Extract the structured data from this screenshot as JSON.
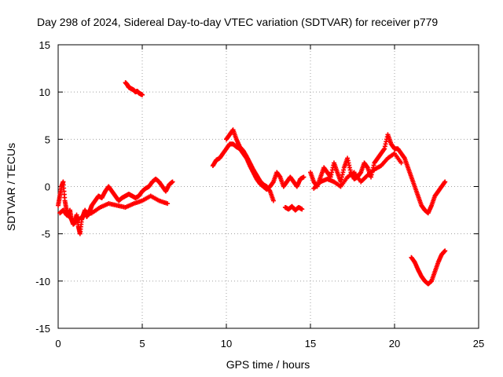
{
  "chart_data": {
    "type": "scatter",
    "title": "Day 298 of 2024, Sidereal Day-to-day VTEC variation (SDTVAR) for receiver p779",
    "xlabel": "GPS time / hours",
    "ylabel": "SDTVAR / TECUs",
    "xlim": [
      0,
      25
    ],
    "ylim": [
      -15,
      15
    ],
    "xticks": [
      0,
      5,
      10,
      15,
      20,
      25
    ],
    "yticks": [
      -15,
      -10,
      -5,
      0,
      5,
      10,
      15
    ],
    "grid": true,
    "marker": "plus",
    "color": "#ff0000",
    "series": [
      {
        "name": "SDTVAR",
        "segments": [
          {
            "x": [
              0.0,
              0.1,
              0.2,
              0.3,
              0.4,
              0.5,
              0.6,
              0.7,
              0.8,
              0.9,
              1.0,
              1.1,
              1.2,
              1.3,
              1.4,
              1.5,
              1.6,
              1.7,
              1.8,
              1.9,
              2.0,
              2.2,
              2.4,
              2.6,
              2.8,
              3.0,
              3.2,
              3.4,
              3.6,
              3.8,
              4.0,
              4.2,
              4.4,
              4.6,
              4.8,
              5.0,
              5.2,
              5.4,
              5.6,
              5.8,
              6.0,
              6.2,
              6.4,
              6.6,
              6.8
            ],
            "y": [
              -2.0,
              -1.0,
              0.0,
              0.5,
              -1.5,
              -2.5,
              -3.0,
              -2.5,
              -3.5,
              -4.0,
              -3.8,
              -3.0,
              -4.2,
              -5.0,
              -3.5,
              -3.0,
              -2.5,
              -3.2,
              -2.8,
              -2.5,
              -2.0,
              -1.5,
              -1.0,
              -1.2,
              -0.5,
              0.0,
              -0.5,
              -1.0,
              -1.5,
              -1.2,
              -1.0,
              -0.8,
              -1.0,
              -1.2,
              -1.0,
              -0.5,
              -0.2,
              0.0,
              0.5,
              0.8,
              0.5,
              0.0,
              -0.5,
              0.2,
              0.5
            ]
          },
          {
            "x": [
              0.1,
              0.3,
              0.5,
              0.7,
              0.9,
              1.2,
              1.6,
              2.0,
              2.5,
              3.0,
              3.5,
              4.0,
              4.5,
              5.0,
              5.5,
              6.0,
              6.5
            ],
            "y": [
              -2.8,
              -2.5,
              -3.0,
              -3.2,
              -3.8,
              -3.5,
              -3.0,
              -2.8,
              -2.2,
              -1.8,
              -2.0,
              -2.2,
              -1.8,
              -1.5,
              -1.0,
              -1.5,
              -1.8
            ]
          },
          {
            "x": [
              4.0,
              4.1,
              4.2,
              4.3,
              4.4,
              4.5,
              4.6,
              4.7,
              4.8,
              4.9,
              5.0
            ],
            "y": [
              11.0,
              10.8,
              10.5,
              10.4,
              10.3,
              10.2,
              10.0,
              10.1,
              9.9,
              9.8,
              9.7
            ]
          },
          {
            "x": [
              9.2,
              9.4,
              9.6,
              9.8,
              10.0,
              10.2,
              10.4,
              10.6,
              10.8,
              11.0,
              11.2,
              11.4,
              11.6,
              11.8,
              12.0,
              12.2,
              12.4,
              12.6,
              12.8,
              13.0,
              13.2,
              13.4,
              13.6,
              13.8,
              14.0,
              14.2,
              14.4,
              14.6
            ],
            "y": [
              2.2,
              2.8,
              3.0,
              3.5,
              4.0,
              4.5,
              4.5,
              4.2,
              4.0,
              3.5,
              3.0,
              2.2,
              1.5,
              0.8,
              0.3,
              0.0,
              -0.3,
              0.0,
              0.5,
              1.5,
              1.0,
              0.0,
              0.5,
              1.0,
              0.5,
              0.0,
              0.8,
              1.0
            ]
          },
          {
            "x": [
              10.0,
              10.2,
              10.4,
              10.6,
              10.8,
              11.0,
              11.2,
              11.4,
              11.6,
              11.8,
              12.0,
              12.2,
              12.4,
              12.6,
              12.8
            ],
            "y": [
              5.0,
              5.5,
              6.0,
              5.0,
              4.2,
              3.8,
              3.2,
              2.5,
              1.8,
              1.2,
              0.6,
              0.2,
              0.0,
              -0.5,
              -1.5
            ]
          },
          {
            "x": [
              13.5,
              13.7,
              13.9,
              14.1,
              14.3,
              14.5
            ],
            "y": [
              -2.2,
              -2.4,
              -2.1,
              -2.5,
              -2.2,
              -2.4
            ]
          },
          {
            "x": [
              15.0,
              15.2,
              15.4,
              15.6,
              15.8,
              16.0,
              16.2,
              16.4,
              16.6,
              16.8,
              17.0,
              17.2,
              17.4,
              17.6,
              17.8,
              18.0,
              18.2,
              18.4,
              18.6,
              18.8,
              19.0,
              19.2,
              19.4,
              19.6,
              19.8,
              20.0,
              20.2,
              20.4,
              20.6,
              20.8,
              21.0,
              21.2,
              21.4,
              21.6,
              21.8,
              22.0,
              22.2,
              22.4,
              22.6,
              22.8,
              23.0
            ],
            "y": [
              1.5,
              0.5,
              0.0,
              1.0,
              2.0,
              1.5,
              1.0,
              2.5,
              1.5,
              0.5,
              2.0,
              3.0,
              1.5,
              0.8,
              1.0,
              1.5,
              2.5,
              2.0,
              1.0,
              2.5,
              3.0,
              3.5,
              4.0,
              5.5,
              4.5,
              4.0,
              4.0,
              3.5,
              3.0,
              2.0,
              1.0,
              0.0,
              -1.0,
              -2.0,
              -2.5,
              -2.8,
              -2.0,
              -1.0,
              -0.5,
              0.0,
              0.5
            ]
          },
          {
            "x": [
              15.2,
              15.6,
              16.0,
              16.4,
              16.8,
              17.2,
              17.6,
              18.0,
              18.4,
              18.8,
              19.2,
              19.6,
              20.0,
              20.4
            ],
            "y": [
              -0.2,
              0.5,
              0.8,
              0.5,
              0.0,
              1.0,
              1.5,
              0.5,
              1.2,
              1.8,
              2.2,
              3.0,
              3.5,
              2.5
            ]
          },
          {
            "x": [
              21.0,
              21.2,
              21.4,
              21.6,
              21.8,
              22.0,
              22.2,
              22.4,
              22.6,
              22.8,
              23.0
            ],
            "y": [
              -7.5,
              -8.0,
              -8.8,
              -9.5,
              -10.0,
              -10.3,
              -10.0,
              -9.0,
              -8.0,
              -7.2,
              -6.8
            ]
          }
        ]
      }
    ]
  }
}
